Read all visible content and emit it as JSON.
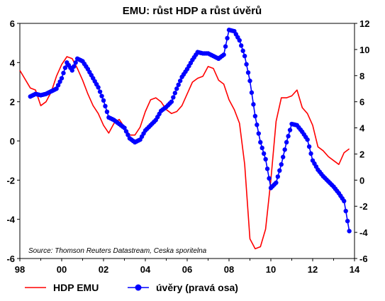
{
  "chart_data": {
    "type": "line",
    "title": "EMU: růst HDP a růst úvěrů",
    "source": "Source: Thomson Reuters Datastream, Ceska sporitelna",
    "x_ticks": [
      "98",
      "00",
      "02",
      "04",
      "06",
      "08",
      "10",
      "12",
      "14"
    ],
    "x_range": [
      1998,
      2014
    ],
    "y_left": {
      "range": [
        -6,
        6
      ],
      "ticks": [
        "6",
        "4",
        "2",
        "0",
        "-2",
        "-4",
        "-6"
      ]
    },
    "y_right": {
      "range": [
        -6,
        12
      ],
      "ticks": [
        "12",
        "10",
        "8",
        "6",
        "4",
        "2",
        "0",
        "-2",
        "-4",
        "-6"
      ]
    },
    "grid": false,
    "legend_position": "bottom",
    "colors": {
      "gdp": "#ff0000",
      "credit": "#0000ff"
    },
    "series": [
      {
        "name": "HDP EMU",
        "axis": "left",
        "style": "line",
        "points": [
          [
            1998.0,
            3.6
          ],
          [
            1998.5,
            2.7
          ],
          [
            1998.75,
            2.6
          ],
          [
            1999.0,
            1.8
          ],
          [
            1999.25,
            2.0
          ],
          [
            1999.5,
            2.5
          ],
          [
            1999.75,
            3.3
          ],
          [
            2000.0,
            3.9
          ],
          [
            2000.25,
            4.3
          ],
          [
            2000.5,
            4.2
          ],
          [
            2000.75,
            3.7
          ],
          [
            2001.0,
            3.1
          ],
          [
            2001.25,
            2.4
          ],
          [
            2001.5,
            1.8
          ],
          [
            2001.75,
            1.4
          ],
          [
            2002.0,
            0.8
          ],
          [
            2002.25,
            0.4
          ],
          [
            2002.5,
            0.9
          ],
          [
            2002.75,
            1.1
          ],
          [
            2003.0,
            0.7
          ],
          [
            2003.25,
            0.3
          ],
          [
            2003.5,
            0.3
          ],
          [
            2003.75,
            0.7
          ],
          [
            2004.0,
            1.5
          ],
          [
            2004.25,
            2.1
          ],
          [
            2004.5,
            2.2
          ],
          [
            2004.75,
            2.0
          ],
          [
            2005.0,
            1.6
          ],
          [
            2005.25,
            1.4
          ],
          [
            2005.5,
            1.5
          ],
          [
            2005.75,
            1.8
          ],
          [
            2006.0,
            2.4
          ],
          [
            2006.25,
            3.0
          ],
          [
            2006.5,
            3.2
          ],
          [
            2006.75,
            3.3
          ],
          [
            2007.0,
            3.8
          ],
          [
            2007.25,
            3.7
          ],
          [
            2007.5,
            3.1
          ],
          [
            2007.75,
            2.9
          ],
          [
            2008.0,
            2.1
          ],
          [
            2008.25,
            1.6
          ],
          [
            2008.5,
            0.9
          ],
          [
            2008.75,
            -1.2
          ],
          [
            2009.0,
            -5.0
          ],
          [
            2009.25,
            -5.5
          ],
          [
            2009.5,
            -5.4
          ],
          [
            2009.75,
            -4.5
          ],
          [
            2010.0,
            -2.0
          ],
          [
            2010.25,
            1.0
          ],
          [
            2010.5,
            2.2
          ],
          [
            2010.75,
            2.2
          ],
          [
            2011.0,
            2.3
          ],
          [
            2011.25,
            2.6
          ],
          [
            2011.5,
            1.7
          ],
          [
            2011.75,
            1.4
          ],
          [
            2012.0,
            0.8
          ],
          [
            2012.25,
            -0.3
          ],
          [
            2012.5,
            -0.5
          ],
          [
            2012.75,
            -0.8
          ],
          [
            2013.0,
            -1.0
          ],
          [
            2013.25,
            -1.2
          ],
          [
            2013.5,
            -0.6
          ],
          [
            2013.75,
            -0.4
          ]
        ]
      },
      {
        "name": "úvěry (pravá osa)",
        "axis": "right",
        "style": "line-markers",
        "points": [
          [
            1998.5,
            6.4
          ],
          [
            1998.75,
            6.6
          ],
          [
            1999.0,
            6.5
          ],
          [
            1999.25,
            6.6
          ],
          [
            1999.5,
            6.8
          ],
          [
            1999.75,
            7.0
          ],
          [
            2000.0,
            7.8
          ],
          [
            2000.25,
            9.0
          ],
          [
            2000.5,
            8.4
          ],
          [
            2000.75,
            9.3
          ],
          [
            2001.0,
            9.1
          ],
          [
            2001.25,
            8.5
          ],
          [
            2001.5,
            7.8
          ],
          [
            2001.75,
            7.1
          ],
          [
            2002.0,
            6.1
          ],
          [
            2002.25,
            4.8
          ],
          [
            2002.5,
            4.6
          ],
          [
            2002.75,
            4.3
          ],
          [
            2003.0,
            4.0
          ],
          [
            2003.25,
            3.2
          ],
          [
            2003.5,
            2.9
          ],
          [
            2003.75,
            3.1
          ],
          [
            2004.0,
            3.8
          ],
          [
            2004.25,
            4.2
          ],
          [
            2004.5,
            4.6
          ],
          [
            2004.75,
            5.3
          ],
          [
            2005.0,
            5.6
          ],
          [
            2005.25,
            6.0
          ],
          [
            2005.5,
            7.0
          ],
          [
            2005.75,
            7.9
          ],
          [
            2006.0,
            8.5
          ],
          [
            2006.25,
            9.2
          ],
          [
            2006.5,
            9.8
          ],
          [
            2006.75,
            9.7
          ],
          [
            2007.0,
            9.7
          ],
          [
            2007.25,
            9.5
          ],
          [
            2007.5,
            9.3
          ],
          [
            2007.75,
            9.6
          ],
          [
            2008.0,
            11.5
          ],
          [
            2008.25,
            11.4
          ],
          [
            2008.5,
            10.7
          ],
          [
            2008.75,
            9.5
          ],
          [
            2009.0,
            7.6
          ],
          [
            2009.25,
            4.9
          ],
          [
            2009.5,
            2.9
          ],
          [
            2009.75,
            1.6
          ],
          [
            2010.0,
            -0.6
          ],
          [
            2010.25,
            -0.2
          ],
          [
            2010.5,
            1.2
          ],
          [
            2010.75,
            2.9
          ],
          [
            2011.0,
            4.3
          ],
          [
            2011.25,
            4.2
          ],
          [
            2011.5,
            3.7
          ],
          [
            2011.75,
            3.1
          ],
          [
            2012.0,
            1.5
          ],
          [
            2012.25,
            0.8
          ],
          [
            2012.5,
            0.3
          ],
          [
            2012.75,
            -0.1
          ],
          [
            2013.0,
            -0.5
          ],
          [
            2013.25,
            -1.0
          ],
          [
            2013.5,
            -1.6
          ],
          [
            2013.75,
            -3.9
          ]
        ]
      }
    ]
  }
}
